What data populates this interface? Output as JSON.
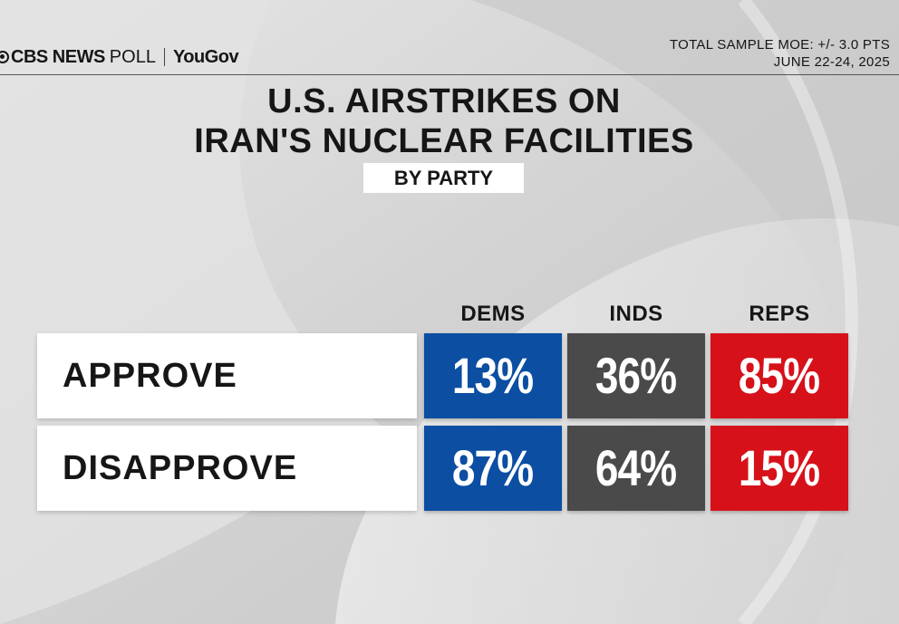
{
  "header": {
    "brand": {
      "network": "CBS NEWS",
      "poll": "POLL",
      "partner": "YouGov"
    },
    "moe": "TOTAL SAMPLE MOE: +/- 3.0 PTS",
    "dates": "JUNE 22-24, 2025"
  },
  "chart_data": {
    "type": "table",
    "title_line1": "U.S. AIRSTRIKES ON",
    "title_line2": "IRAN'S NUCLEAR FACILITIES",
    "subtitle": "BY PARTY",
    "columns": [
      "DEMS",
      "INDS",
      "REPS"
    ],
    "rows": [
      {
        "label": "APPROVE",
        "values": [
          13,
          36,
          85
        ],
        "display": [
          "13%",
          "36%",
          "85%"
        ]
      },
      {
        "label": "DISAPPROVE",
        "values": [
          87,
          64,
          15
        ],
        "display": [
          "87%",
          "64%",
          "15%"
        ]
      }
    ],
    "column_colors": [
      "#0b4ea2",
      "#4a4a4a",
      "#d6111a"
    ]
  }
}
